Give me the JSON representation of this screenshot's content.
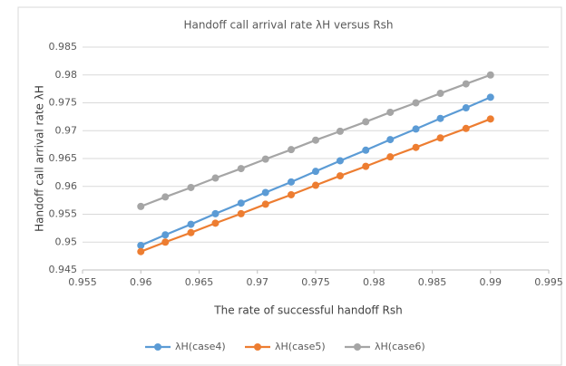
{
  "chart_data": {
    "type": "line",
    "title": "Handoff call arrival rate λH versus Rsh",
    "x_label": "The rate of successful handoff Rsh",
    "y_label": "Handoff call arrival rate λH",
    "x": [
      0.96,
      0.9621,
      0.9643,
      0.9664,
      0.9686,
      0.9707,
      0.9729,
      0.975,
      0.9771,
      0.9793,
      0.9814,
      0.9836,
      0.9857,
      0.9879,
      0.99
    ],
    "series": [
      {
        "name": "λH(case4)",
        "color": "#5b9bd5",
        "values": [
          0.9494,
          0.9513,
          0.9532,
          0.9551,
          0.957,
          0.9589,
          0.9608,
          0.9627,
          0.9646,
          0.9665,
          0.9684,
          0.9703,
          0.9722,
          0.9741,
          0.976
        ]
      },
      {
        "name": "λH(case5)",
        "color": "#ed7d31",
        "values": [
          0.9483,
          0.95,
          0.9517,
          0.9534,
          0.9551,
          0.9568,
          0.9585,
          0.9602,
          0.9619,
          0.9636,
          0.9653,
          0.967,
          0.9687,
          0.9704,
          0.9721
        ]
      },
      {
        "name": "λH(case6)",
        "color": "#a5a5a5",
        "values": [
          0.9564,
          0.9581,
          0.9598,
          0.9615,
          0.9632,
          0.9649,
          0.9666,
          0.9683,
          0.9699,
          0.9716,
          0.9733,
          0.975,
          0.9767,
          0.9784,
          0.98
        ]
      }
    ],
    "xlim": [
      0.955,
      0.995
    ],
    "xticks": [
      0.955,
      0.96,
      0.965,
      0.97,
      0.975,
      0.98,
      0.985,
      0.99,
      0.995
    ],
    "ylim": [
      0.945,
      0.985
    ],
    "yticks": [
      0.945,
      0.95,
      0.955,
      0.96,
      0.965,
      0.97,
      0.975,
      0.98,
      0.985
    ],
    "grid": true,
    "legend": "bottom"
  }
}
